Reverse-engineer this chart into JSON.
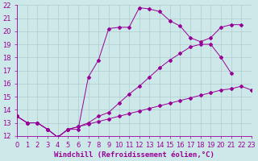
{
  "xlabel": "Windchill (Refroidissement éolien,°C)",
  "background_color": "#cce8e8",
  "line_color": "#990099",
  "xlim": [
    0,
    23
  ],
  "ylim": [
    12,
    22
  ],
  "xticks": [
    0,
    1,
    2,
    3,
    4,
    5,
    6,
    7,
    8,
    9,
    10,
    11,
    12,
    13,
    14,
    15,
    16,
    17,
    18,
    19,
    20,
    21,
    22,
    23
  ],
  "yticks": [
    12,
    13,
    14,
    15,
    16,
    17,
    18,
    19,
    20,
    21,
    22
  ],
  "line1_x": [
    0,
    1,
    2,
    3,
    4,
    5,
    6,
    7,
    8,
    9,
    10,
    11,
    12,
    13,
    14,
    15,
    16,
    17,
    18,
    19,
    20,
    21,
    22
  ],
  "line1_y": [
    13.5,
    13.0,
    13.0,
    12.5,
    11.9,
    12.5,
    12.5,
    16.5,
    17.8,
    20.2,
    20.3,
    20.3,
    21.8,
    21.7,
    21.5,
    20.8,
    20.4,
    19.5,
    19.2,
    19.5,
    20.3,
    20.5,
    20.5
  ],
  "line2_x": [
    0,
    1,
    2,
    3,
    4,
    5,
    6,
    7,
    8,
    9,
    10,
    11,
    12,
    13,
    14,
    15,
    16,
    17,
    18,
    19,
    20,
    21
  ],
  "line2_y": [
    13.5,
    13.0,
    13.0,
    12.5,
    11.9,
    12.5,
    12.7,
    13.0,
    13.5,
    13.8,
    14.5,
    15.2,
    15.8,
    16.5,
    17.2,
    17.8,
    18.3,
    18.8,
    19.0,
    19.0,
    18.0,
    16.8
  ],
  "line3_x": [
    0,
    1,
    2,
    3,
    4,
    5,
    6,
    7,
    8,
    9,
    10,
    11,
    12,
    13,
    14,
    15,
    16,
    17,
    18,
    19,
    20,
    21,
    22,
    23
  ],
  "line3_y": [
    13.5,
    13.0,
    13.0,
    12.5,
    11.9,
    12.5,
    12.7,
    12.9,
    13.1,
    13.3,
    13.5,
    13.7,
    13.9,
    14.1,
    14.3,
    14.5,
    14.7,
    14.9,
    15.1,
    15.3,
    15.5,
    15.6,
    15.8,
    15.5
  ],
  "grid_color": "#b0cccc",
  "xlabel_fontsize": 6.5,
  "tick_fontsize": 6.0
}
